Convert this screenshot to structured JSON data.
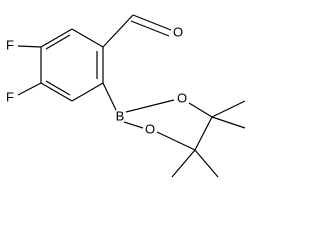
{
  "atoms": {
    "fluorine_top": "F",
    "fluorine_bottom": "F",
    "aldehyde_oxygen": "O",
    "boron": "B",
    "ester_oxygen_top": "O",
    "ester_oxygen_bottom": "O"
  }
}
